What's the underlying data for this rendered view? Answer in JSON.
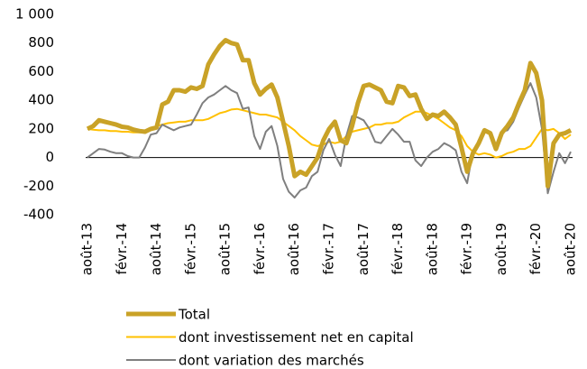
{
  "chart_data": {
    "type": "line",
    "categories": [
      "août-13",
      null,
      null,
      null,
      null,
      null,
      "févr.-14",
      null,
      null,
      null,
      null,
      null,
      "août-14",
      null,
      null,
      null,
      null,
      null,
      "févr.-15",
      null,
      null,
      null,
      null,
      null,
      "août-15",
      null,
      null,
      null,
      null,
      null,
      "févr.-16",
      null,
      null,
      null,
      null,
      null,
      "août-16",
      null,
      null,
      null,
      null,
      null,
      "févr.-17",
      null,
      null,
      null,
      null,
      null,
      "août-17",
      null,
      null,
      null,
      null,
      null,
      "févr.-18",
      null,
      null,
      null,
      null,
      null,
      "août-18",
      null,
      null,
      null,
      null,
      null,
      "févr.-19",
      null,
      null,
      null,
      null,
      null,
      "août-19",
      null,
      null,
      null,
      null,
      null,
      "févr.-20",
      null,
      null,
      null,
      null,
      null,
      "août-20"
    ],
    "series": [
      {
        "name": "Total",
        "color": "#c9a227",
        "values": [
          200,
          220,
          260,
          250,
          240,
          230,
          215,
          210,
          195,
          185,
          180,
          200,
          210,
          370,
          390,
          470,
          470,
          460,
          490,
          480,
          500,
          650,
          720,
          780,
          820,
          800,
          790,
          680,
          680,
          520,
          440,
          480,
          510,
          420,
          250,
          80,
          -130,
          -100,
          -120,
          -60,
          0,
          120,
          200,
          250,
          120,
          100,
          220,
          380,
          500,
          510,
          490,
          470,
          390,
          380,
          500,
          490,
          430,
          440,
          340,
          270,
          300,
          290,
          320,
          280,
          230,
          70,
          -100,
          30,
          100,
          190,
          170,
          60,
          170,
          220,
          280,
          380,
          470,
          660,
          590,
          400,
          -200,
          100,
          160,
          170,
          190
        ]
      },
      {
        "name": "dont investissement net en capital",
        "color": "#ffc000",
        "values": [
          200,
          195,
          190,
          190,
          185,
          185,
          180,
          180,
          175,
          175,
          175,
          200,
          220,
          230,
          240,
          245,
          250,
          250,
          260,
          260,
          260,
          270,
          290,
          310,
          320,
          335,
          340,
          330,
          320,
          310,
          300,
          300,
          290,
          280,
          250,
          220,
          190,
          150,
          120,
          90,
          80,
          90,
          110,
          100,
          110,
          150,
          180,
          190,
          200,
          210,
          230,
          230,
          240,
          240,
          250,
          280,
          300,
          320,
          320,
          310,
          290,
          270,
          240,
          210,
          190,
          150,
          80,
          40,
          20,
          30,
          20,
          0,
          10,
          30,
          40,
          60,
          60,
          80,
          140,
          200,
          190,
          200,
          170,
          130,
          160
        ]
      },
      {
        "name": "dont variation des marchés",
        "color": "#7f7f7f",
        "values": [
          0,
          30,
          60,
          55,
          40,
          30,
          30,
          10,
          0,
          0,
          70,
          160,
          170,
          230,
          210,
          190,
          210,
          220,
          230,
          300,
          380,
          420,
          440,
          470,
          500,
          470,
          450,
          340,
          350,
          150,
          60,
          180,
          220,
          80,
          -150,
          -240,
          -280,
          -230,
          -210,
          -130,
          -100,
          50,
          130,
          20,
          -60,
          150,
          290,
          280,
          260,
          200,
          110,
          100,
          150,
          200,
          160,
          110,
          110,
          -20,
          -60,
          0,
          40,
          60,
          100,
          80,
          50,
          -100,
          -180,
          50,
          100,
          200,
          170,
          50,
          180,
          190,
          250,
          350,
          440,
          520,
          420,
          200,
          -250,
          -100,
          30,
          -40,
          40
        ]
      }
    ],
    "ylim": [
      -400,
      1000
    ],
    "yticks": [
      {
        "value": 1000,
        "label": "1 000"
      },
      800,
      600,
      400,
      200,
      0,
      -200,
      -400
    ]
  }
}
